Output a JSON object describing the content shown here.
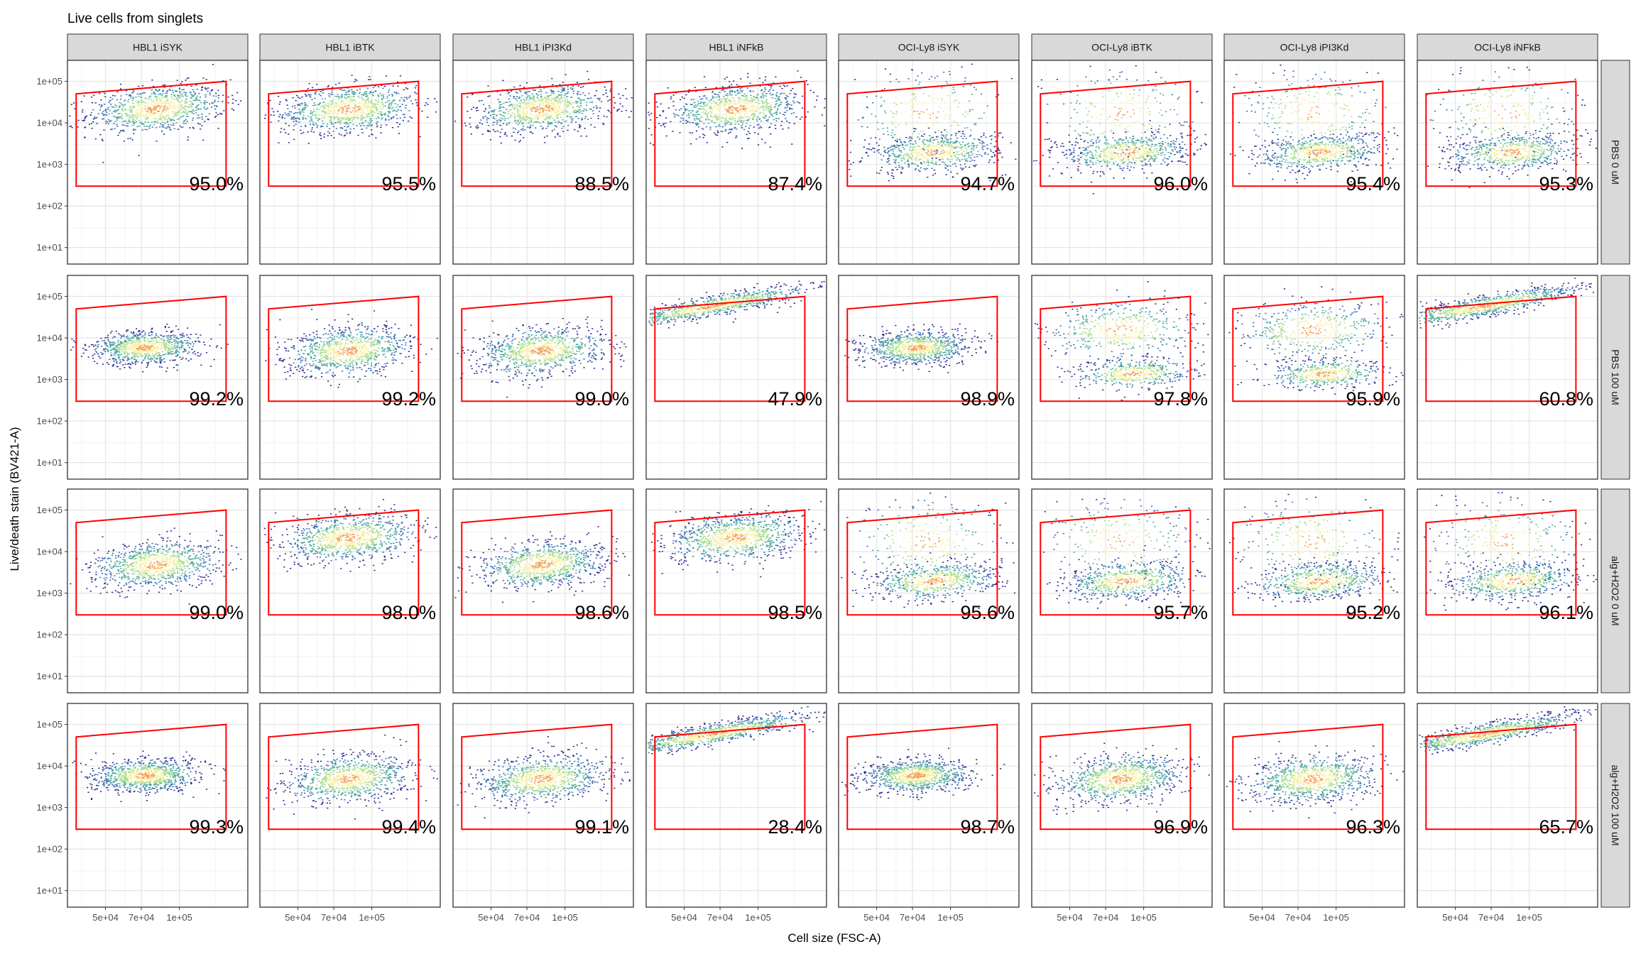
{
  "chart_data": {
    "type": "scatter",
    "title": "Live cells from singlets",
    "xlabel": "Cell size (FSC-A)",
    "ylabel": "Live/death stain (BV421-A)",
    "x_scale": "log",
    "y_scale": "log",
    "x_ticks": [
      "5e+04",
      "7e+04",
      "1e+05"
    ],
    "y_ticks": [
      "1e+01",
      "1e+02",
      "1e+03",
      "1e+04",
      "1e+05"
    ],
    "columns": [
      "HBL1 iSYK",
      "HBL1 iBTK",
      "HBL1 iPI3Kd",
      "HBL1 iNFkB",
      "OCI-Ly8 iSYK",
      "OCI-Ly8 iBTK",
      "OCI-Ly8 iPI3Kd",
      "OCI-Ly8 iNFkB"
    ],
    "rows": [
      "PBS 0 uM",
      "PBS 100 uM",
      "alg+H2O2 0 uM",
      "alg+H2O2 100 uM"
    ],
    "gate_percentages": [
      [
        "95.0%",
        "95.5%",
        "88.5%",
        "87.4%",
        "94.7%",
        "96.0%",
        "95.4%",
        "95.3%"
      ],
      [
        "99.2%",
        "99.2%",
        "99.0%",
        "47.9%",
        "98.9%",
        "97.8%",
        "95.9%",
        "60.8%"
      ],
      [
        "99.0%",
        "98.0%",
        "98.6%",
        "98.5%",
        "95.6%",
        "95.7%",
        "95.2%",
        "96.1%"
      ],
      [
        "99.3%",
        "99.4%",
        "99.1%",
        "28.4%",
        "98.7%",
        "96.9%",
        "96.3%",
        "65.7%"
      ]
    ],
    "grid": true,
    "gate_color": "#ff0000",
    "density_colors": [
      "#2c2a8f",
      "#3a6fb0",
      "#4fa9a0",
      "#a9dc8a",
      "#f7f0a0",
      "#f4a25a",
      "#d7301f"
    ]
  }
}
